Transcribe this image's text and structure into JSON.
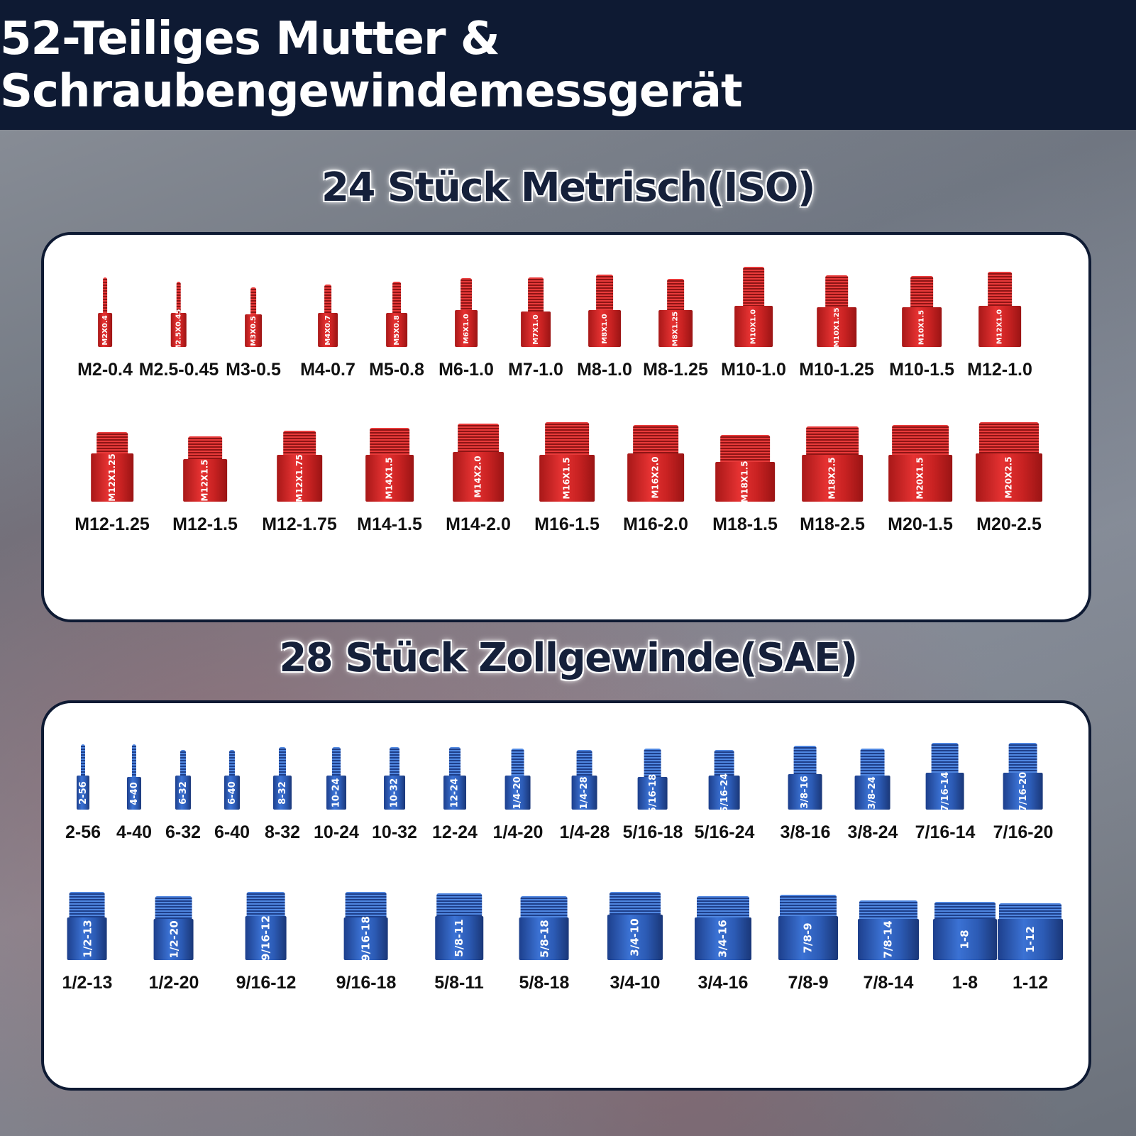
{
  "header": {
    "title": "52-Teiliges Mutter & Schraubengewindemessgerät"
  },
  "metric": {
    "title": "24 Stück Metrisch(ISO)",
    "color": "#d62828",
    "rows": [
      [
        {
          "label": "M2-0.4",
          "engraving": "M2X0.4"
        },
        {
          "label": "M2.5-0.45",
          "engraving": "M2.5X0.45"
        },
        {
          "label": "M3-0.5",
          "engraving": "M3X0.5"
        },
        {
          "label": "M4-0.7",
          "engraving": "M4X0.7"
        },
        {
          "label": "M5-0.8",
          "engraving": "M5X0.8"
        },
        {
          "label": "M6-1.0",
          "engraving": "M6X1.0"
        },
        {
          "label": "M7-1.0",
          "engraving": "M7X1.0"
        },
        {
          "label": "M8-1.0",
          "engraving": "M8X1.0"
        },
        {
          "label": "M8-1.25",
          "engraving": "M8X1.25"
        },
        {
          "label": "M10-1.0",
          "engraving": "M10X1.0"
        },
        {
          "label": "M10-1.25",
          "engraving": "M10X1.25"
        },
        {
          "label": "M10-1.5",
          "engraving": "M10X1.5"
        },
        {
          "label": "M12-1.0",
          "engraving": "M12X1.0"
        }
      ],
      [
        {
          "label": "M12-1.25",
          "engraving": "M12X1.25"
        },
        {
          "label": "M12-1.5",
          "engraving": "M12X1.5"
        },
        {
          "label": "M12-1.75",
          "engraving": "M12X1.75"
        },
        {
          "label": "M14-1.5",
          "engraving": "M14X1.5"
        },
        {
          "label": "M14-2.0",
          "engraving": "M14X2.0"
        },
        {
          "label": "M16-1.5",
          "engraving": "M16X1.5"
        },
        {
          "label": "M16-2.0",
          "engraving": "M16X2.0"
        },
        {
          "label": "M18-1.5",
          "engraving": "M18X1.5"
        },
        {
          "label": "M18-2.5",
          "engraving": "M18X2.5"
        },
        {
          "label": "M20-1.5",
          "engraving": "M20X1.5"
        },
        {
          "label": "M20-2.5",
          "engraving": "M20X2.5"
        }
      ]
    ]
  },
  "sae": {
    "title": "28 Stück Zollgewinde(SAE)",
    "color": "#2f62c4",
    "rows": [
      [
        {
          "label": "2-56",
          "engraving": "2-56"
        },
        {
          "label": "4-40",
          "engraving": "4-40"
        },
        {
          "label": "6-32",
          "engraving": "6-32"
        },
        {
          "label": "6-40",
          "engraving": "6-40"
        },
        {
          "label": "8-32",
          "engraving": "8-32"
        },
        {
          "label": "10-24",
          "engraving": "10-24"
        },
        {
          "label": "10-32",
          "engraving": "10-32"
        },
        {
          "label": "12-24",
          "engraving": "12-24"
        },
        {
          "label": "1/4-20",
          "engraving": "1/4-20"
        },
        {
          "label": "1/4-28",
          "engraving": "1/4-28"
        },
        {
          "label": "5/16-18",
          "engraving": "5/16-18"
        },
        {
          "label": "5/16-24",
          "engraving": "5/16-24"
        },
        {
          "label": "3/8-16",
          "engraving": "3/8-16"
        },
        {
          "label": "3/8-24",
          "engraving": "3/8-24"
        },
        {
          "label": "7/16-14",
          "engraving": "7/16-14"
        },
        {
          "label": "7/16-20",
          "engraving": "7/16-20"
        }
      ],
      [
        {
          "label": "1/2-13",
          "engraving": "1/2-13"
        },
        {
          "label": "1/2-20",
          "engraving": "1/2-20"
        },
        {
          "label": "9/16-12",
          "engraving": "9/16-12"
        },
        {
          "label": "9/16-18",
          "engraving": "9/16-18"
        },
        {
          "label": "5/8-11",
          "engraving": "5/8-11"
        },
        {
          "label": "5/8-18",
          "engraving": "5/8-18"
        },
        {
          "label": "3/4-10",
          "engraving": "3/4-10"
        },
        {
          "label": "3/4-16",
          "engraving": "3/4-16"
        },
        {
          "label": "7/8-9",
          "engraving": "7/8-9"
        },
        {
          "label": "7/8-14",
          "engraving": "7/8-14"
        },
        {
          "label": "1-8",
          "engraving": "1-8"
        },
        {
          "label": "1-12",
          "engraving": "1-12"
        }
      ]
    ]
  }
}
